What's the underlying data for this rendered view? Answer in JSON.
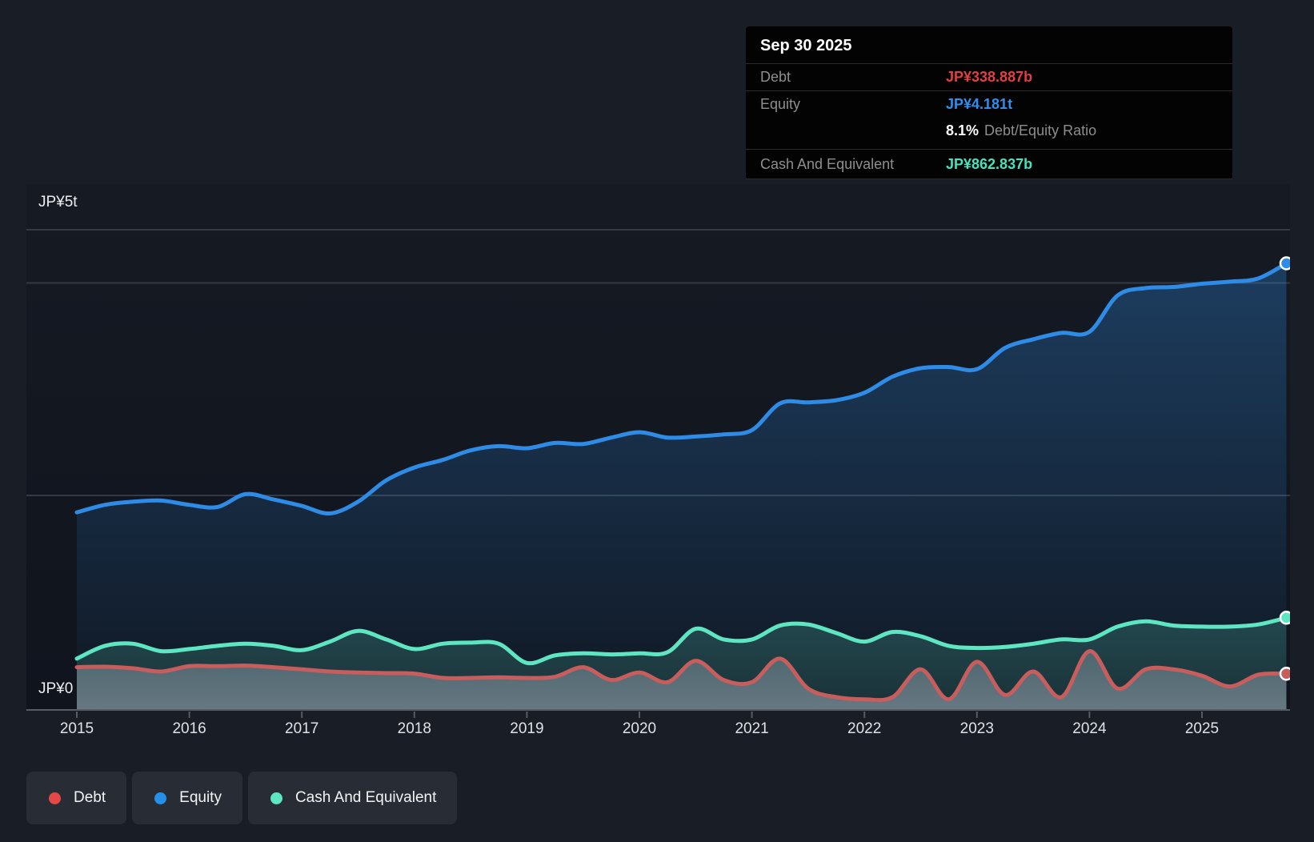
{
  "tooltip": {
    "date": "Sep 30 2025",
    "debt_label": "Debt",
    "debt_value": "JP¥338.887b",
    "equity_label": "Equity",
    "equity_value": "JP¥4.181t",
    "ratio_value": "8.1%",
    "ratio_label": "Debt/Equity Ratio",
    "cash_label": "Cash And Equivalent",
    "cash_value": "JP¥862.837b"
  },
  "legend": [
    {
      "label": "Debt",
      "color": "#e64747"
    },
    {
      "label": "Equity",
      "color": "#2490e8"
    },
    {
      "label": "Cash And Equivalent",
      "color": "#5ee6c3"
    }
  ],
  "colors": {
    "debt_line": "#c75d5d",
    "equity_line": "#2e8ce6",
    "cash_line": "#5ee6c3",
    "debt_text": "#e04040",
    "equity_text": "#2d8ff2",
    "cash_text": "#46e2bd",
    "grid": "#343a44",
    "axis": "#565c64",
    "plot_bg_top": "#161a23",
    "plot_bg_bottom": "#0f141d"
  },
  "chart_data": {
    "type": "area",
    "unit": "JP¥ trillions",
    "ylim": [
      0,
      5
    ],
    "grid": "horizontal",
    "legend_position": "bottom-left",
    "end_markers": true,
    "y_axis_labels": {
      "top": "JP¥5t",
      "bottom": "JP¥0"
    },
    "x_ticks": [
      "2015",
      "2016",
      "2017",
      "2018",
      "2019",
      "2020",
      "2021",
      "2022",
      "2023",
      "2024",
      "2025"
    ],
    "x": [
      2015,
      2015.25,
      2015.5,
      2015.75,
      2016,
      2016.25,
      2016.5,
      2016.75,
      2017,
      2017.25,
      2017.5,
      2017.75,
      2018,
      2018.25,
      2018.5,
      2018.75,
      2019,
      2019.25,
      2019.5,
      2019.75,
      2020,
      2020.25,
      2020.5,
      2020.75,
      2021,
      2021.25,
      2021.5,
      2021.75,
      2022,
      2022.25,
      2022.5,
      2022.75,
      2023,
      2023.25,
      2023.5,
      2023.75,
      2024,
      2024.25,
      2024.5,
      2024.75,
      2025,
      2025.25,
      2025.5,
      2025.75
    ],
    "series": [
      {
        "name": "Debt",
        "color": "#c75d5d",
        "values": [
          0.4,
          0.405,
          0.39,
          0.36,
          0.41,
          0.41,
          0.415,
          0.4,
          0.38,
          0.36,
          0.35,
          0.345,
          0.34,
          0.3,
          0.3,
          0.305,
          0.3,
          0.31,
          0.4,
          0.28,
          0.35,
          0.26,
          0.46,
          0.28,
          0.26,
          0.48,
          0.2,
          0.12,
          0.1,
          0.12,
          0.38,
          0.1,
          0.45,
          0.14,
          0.36,
          0.12,
          0.55,
          0.2,
          0.38,
          0.38,
          0.32,
          0.22,
          0.33,
          0.339
        ],
        "last_value_label": "JP¥338.887b"
      },
      {
        "name": "Equity",
        "color": "#2e8ce6",
        "values": [
          1.85,
          1.92,
          1.95,
          1.96,
          1.92,
          1.9,
          2.02,
          1.97,
          1.91,
          1.84,
          1.95,
          2.15,
          2.27,
          2.34,
          2.43,
          2.47,
          2.45,
          2.5,
          2.49,
          2.55,
          2.6,
          2.55,
          2.56,
          2.58,
          2.62,
          2.87,
          2.88,
          2.9,
          2.97,
          3.12,
          3.2,
          3.21,
          3.19,
          3.39,
          3.47,
          3.53,
          3.54,
          3.88,
          3.95,
          3.96,
          3.99,
          4.01,
          4.04,
          4.181
        ],
        "last_value_label": "JP¥4.181t"
      },
      {
        "name": "Cash And Equivalent",
        "color": "#5ee6c3",
        "values": [
          0.48,
          0.6,
          0.62,
          0.55,
          0.57,
          0.6,
          0.62,
          0.6,
          0.56,
          0.64,
          0.74,
          0.66,
          0.57,
          0.62,
          0.63,
          0.62,
          0.44,
          0.51,
          0.53,
          0.52,
          0.53,
          0.54,
          0.76,
          0.66,
          0.66,
          0.79,
          0.8,
          0.72,
          0.64,
          0.73,
          0.69,
          0.6,
          0.58,
          0.59,
          0.62,
          0.66,
          0.66,
          0.78,
          0.83,
          0.79,
          0.78,
          0.78,
          0.8,
          0.863
        ],
        "last_value_label": "JP¥862.837b"
      }
    ]
  }
}
